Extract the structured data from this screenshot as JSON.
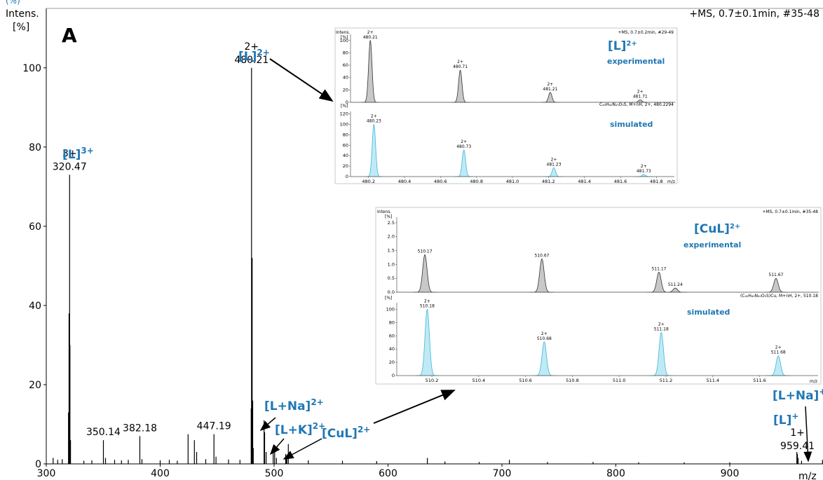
{
  "chart_data": [
    {
      "type": "line",
      "panel_label": "A",
      "header": "+MS, 0.7±0.1min, #35-48",
      "ylabel_line1": "Intens.",
      "ylabel_line2": "[%]",
      "xlabel": "m/z",
      "xlim": [
        300,
        980
      ],
      "ylim": [
        0,
        115
      ],
      "x_ticks": [
        300,
        400,
        500,
        600,
        700,
        800,
        900
      ],
      "y_ticks": [
        0,
        20,
        40,
        60,
        80,
        100
      ],
      "grid": false,
      "series": [
        {
          "values": [
            {
              "x": 306,
              "y": 1.5
            },
            {
              "x": 310,
              "y": 1.0
            },
            {
              "x": 314,
              "y": 1.2
            },
            {
              "x": 319.5,
              "y": 13
            },
            {
              "x": 320.0,
              "y": 38
            },
            {
              "x": 320.47,
              "y": 73
            },
            {
              "x": 320.8,
              "y": 30
            },
            {
              "x": 321.3,
              "y": 6
            },
            {
              "x": 333,
              "y": 0.8
            },
            {
              "x": 340,
              "y": 0.9
            },
            {
              "x": 350.14,
              "y": 6
            },
            {
              "x": 352,
              "y": 1.5
            },
            {
              "x": 360,
              "y": 1.0
            },
            {
              "x": 366,
              "y": 0.9
            },
            {
              "x": 372,
              "y": 1.0
            },
            {
              "x": 382.18,
              "y": 7
            },
            {
              "x": 384,
              "y": 1.2
            },
            {
              "x": 400,
              "y": 0.9
            },
            {
              "x": 408,
              "y": 1.0
            },
            {
              "x": 415,
              "y": 0.8
            },
            {
              "x": 424.5,
              "y": 7.5
            },
            {
              "x": 430,
              "y": 6
            },
            {
              "x": 432,
              "y": 3
            },
            {
              "x": 440,
              "y": 1.2
            },
            {
              "x": 447.19,
              "y": 7.5
            },
            {
              "x": 449,
              "y": 1.8
            },
            {
              "x": 460,
              "y": 1.1
            },
            {
              "x": 470,
              "y": 1.0
            },
            {
              "x": 479.9,
              "y": 14
            },
            {
              "x": 480.21,
              "y": 100
            },
            {
              "x": 480.71,
              "y": 52
            },
            {
              "x": 481.21,
              "y": 16
            },
            {
              "x": 481.71,
              "y": 4
            },
            {
              "x": 491.2,
              "y": 11
            },
            {
              "x": 491.7,
              "y": 8
            },
            {
              "x": 493,
              "y": 3
            },
            {
              "x": 499.2,
              "y": 3
            },
            {
              "x": 500.5,
              "y": 3
            },
            {
              "x": 502,
              "y": 1.5
            },
            {
              "x": 510.17,
              "y": 2.5
            },
            {
              "x": 510.67,
              "y": 1.8
            },
            {
              "x": 511.17,
              "y": 1.5
            },
            {
              "x": 512.5,
              "y": 5
            },
            {
              "x": 530,
              "y": 0.9
            },
            {
              "x": 560,
              "y": 0.8
            },
            {
              "x": 590,
              "y": 0.7
            },
            {
              "x": 634.5,
              "y": 1.5
            },
            {
              "x": 650,
              "y": 0.6
            },
            {
              "x": 680,
              "y": 0.5
            },
            {
              "x": 706.5,
              "y": 1.0
            },
            {
              "x": 740,
              "y": 0.5
            },
            {
              "x": 780,
              "y": 0.5
            },
            {
              "x": 820,
              "y": 0.4
            },
            {
              "x": 860,
              "y": 0.4
            },
            {
              "x": 900,
              "y": 0.4
            },
            {
              "x": 958.9,
              "y": 3
            },
            {
              "x": 959.41,
              "y": 2.5
            },
            {
              "x": 960,
              "y": 1.5
            },
            {
              "x": 963,
              "y": 0.8
            },
            {
              "x": 981.4,
              "y": 1.0
            }
          ]
        }
      ],
      "peak_labels": [
        {
          "mz": 320.47,
          "y": 73,
          "charge": "3+",
          "mass": "320.47"
        },
        {
          "mz": 480.21,
          "y": 100,
          "charge": "2+",
          "mass": "480.21"
        },
        {
          "mz": 350.14,
          "y": 6,
          "mass": "350.14"
        },
        {
          "mz": 382.18,
          "y": 7,
          "mass": "382.18"
        },
        {
          "mz": 447.19,
          "y": 7.5,
          "mass": "447.19"
        },
        {
          "mz": 959.41,
          "y": 2.5,
          "charge": "1+",
          "mass": "959.41"
        }
      ],
      "annotations": [
        {
          "id": "L3",
          "base": "[L]",
          "sup": "3+"
        },
        {
          "id": "L2",
          "base": "[L]",
          "sup": "2+"
        },
        {
          "id": "LNa",
          "base": "[L+Na]",
          "sup": "2+"
        },
        {
          "id": "LK",
          "base": "[L+K]",
          "sup": "2+"
        },
        {
          "id": "CuL",
          "base": "[CuL]",
          "sup": "2+"
        },
        {
          "id": "LNa1",
          "base": "[L+Na]",
          "sup": "+"
        },
        {
          "id": "L1",
          "base": "[L]",
          "sup": "+"
        }
      ]
    },
    {
      "type": "line",
      "inset": "[L]2+",
      "ion_label": {
        "base": "[L]",
        "sup": "2+"
      },
      "top": {
        "title": "experimental",
        "header": "+MS, 0.7±0.2min, #29-49",
        "ylabel_line1": "Intens.",
        "ylabel_line2": "[%]",
        "y_ticks": [
          0,
          20,
          40,
          60,
          80,
          100
        ],
        "ylim": [
          0,
          110
        ],
        "peaks": [
          {
            "x": 480.21,
            "y": 100,
            "charge": "2+",
            "label": "480.21"
          },
          {
            "x": 480.71,
            "y": 52,
            "charge": "2+",
            "label": "480.71"
          },
          {
            "x": 481.21,
            "y": 16,
            "charge": "2+",
            "label": "481.21"
          },
          {
            "x": 481.71,
            "y": 4,
            "charge": "2+",
            "label": "481.71"
          }
        ]
      },
      "bottom": {
        "title": "simulated",
        "header": "C₄₅H₆₂N₁₀O₅S, M+nH, 2+, 480.2294",
        "ylabel": "[%]",
        "y_ticks": [
          0,
          20,
          40,
          60,
          80,
          100,
          120
        ],
        "ylim": [
          0,
          125
        ],
        "peaks": [
          {
            "x": 480.23,
            "y": 100,
            "charge": "2+",
            "label": "480.23"
          },
          {
            "x": 480.73,
            "y": 51,
            "charge": "2+",
            "label": "480.73"
          },
          {
            "x": 481.23,
            "y": 17,
            "charge": "2+",
            "label": "481.23"
          },
          {
            "x": 481.73,
            "y": 4,
            "charge": "2+",
            "label": "481.73"
          }
        ]
      },
      "xlim": [
        480.1,
        481.9
      ],
      "x_ticks": [
        "480.2",
        "480.4",
        "480.6",
        "480.8",
        "481.0",
        "481.2",
        "481.4",
        "481.6",
        "481.8"
      ],
      "xlabel": "m/z"
    },
    {
      "type": "line",
      "inset": "[CuL]2+",
      "ion_label": {
        "base": "[CuL]",
        "sup": "2+"
      },
      "top": {
        "title": "experimental",
        "header": "+MS, 0.7±0.1min, #35-48",
        "ylabel_line1": "Intens.",
        "ylabel_line2": "[%]",
        "y_ticks": [
          "0.0",
          "0.5",
          "1.0",
          "1.5",
          "2.0",
          "2.5"
        ],
        "ylim": [
          0,
          2.7
        ],
        "peaks": [
          {
            "x": 510.17,
            "y": 1.35,
            "label": "510.17"
          },
          {
            "x": 510.67,
            "y": 1.2,
            "label": "510.67"
          },
          {
            "x": 511.17,
            "y": 0.72,
            "label": "511.17"
          },
          {
            "x": 511.24,
            "y": 0.15,
            "label": "511.24"
          },
          {
            "x": 511.67,
            "y": 0.5,
            "label": "511.67"
          }
        ]
      },
      "bottom": {
        "title": "simulated",
        "header": "(C₄₅H₆₀N₁₀O₅S)Cu, M+nH, 2+, 510.18",
        "ylabel": "[%]",
        "y_ticks": [
          0,
          20,
          40,
          60,
          80,
          100
        ],
        "ylim": [
          0,
          110
        ],
        "peaks": [
          {
            "x": 510.18,
            "y": 100,
            "charge": "2+",
            "label": "510.18"
          },
          {
            "x": 510.68,
            "y": 51,
            "charge": "2+",
            "label": "510.68"
          },
          {
            "x": 511.18,
            "y": 65,
            "charge": "2+",
            "label": "511.18"
          },
          {
            "x": 511.68,
            "y": 30,
            "charge": "2+",
            "label": "511.68"
          }
        ]
      },
      "xlim": [
        510.05,
        511.85
      ],
      "x_ticks": [
        "510.2",
        "510.4",
        "510.6",
        "510.8",
        "511.0",
        "511.2",
        "511.4",
        "511.6"
      ],
      "xlabel": "m/z"
    }
  ],
  "colors": {
    "main_line": "#000000",
    "label_blue": "#1f77b4",
    "exp_fill": "#c8c8c8",
    "sim_fill": "#bfeaf5",
    "sim_line": "#3fb6d8"
  }
}
